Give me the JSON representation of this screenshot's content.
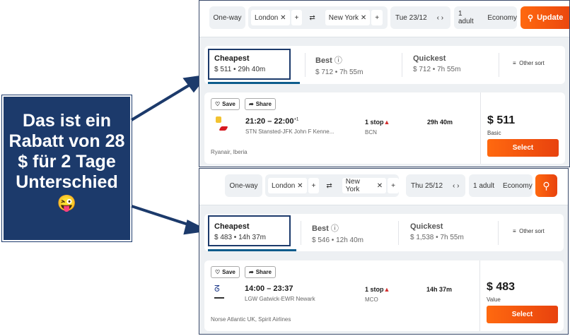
{
  "callout": {
    "text": "Das ist ein Rabatt von 28 $ für 2 Tage Unterschied",
    "emoji": "😜",
    "color": "#1c3a6b"
  },
  "panels": [
    {
      "trip_type": "One-way",
      "origin": "London",
      "destination": "New York",
      "date": "Tue 23/12",
      "passengers": "1 adult",
      "cabin": "Economy",
      "search_label": "Update",
      "sort": [
        {
          "label": "Cheapest",
          "detail": "$ 511 • 29h 40m"
        },
        {
          "label": "Best",
          "detail": "$ 712 • 7h 55m"
        },
        {
          "label": "Quickest",
          "detail": "$ 712 • 7h 55m"
        }
      ],
      "other_sort": "Other sort",
      "result": {
        "save": "Save",
        "share": "Share",
        "times": "21:20 – 22:00",
        "day_offset": "+1",
        "route": "STN Stansted-JFK John F Kenne...",
        "stops": "1 stop",
        "stop_airport": "BCN",
        "duration": "29h 40m",
        "airlines": "Ryanair, Iberia",
        "price": "$ 511",
        "fare": "Basic",
        "select": "Select"
      }
    },
    {
      "trip_type": "One-way",
      "origin": "London",
      "destination": "New York",
      "date": "Thu 25/12",
      "passengers": "1 adult",
      "cabin": "Economy",
      "sort": [
        {
          "label": "Cheapest",
          "detail": "$ 483 • 14h 37m"
        },
        {
          "label": "Best",
          "detail": "$ 546 • 12h 40m"
        },
        {
          "label": "Quickest",
          "detail": "$ 1,538 • 7h 55m"
        }
      ],
      "other_sort": "Other sort",
      "result": {
        "save": "Save",
        "share": "Share",
        "times": "14:00 – 23:37",
        "route": "LGW Gatwick-EWR Newark",
        "stops": "1 stop",
        "stop_airport": "MCO",
        "duration": "14h 37m",
        "airlines": "Norse Atlantic UK, Spirit Airlines",
        "price": "$ 483",
        "fare": "Value",
        "select": "Select"
      }
    }
  ],
  "colors": {
    "accent": "#ff690f",
    "tab_underline": "#0d5c8c",
    "highlight": "#1c3a6b"
  }
}
